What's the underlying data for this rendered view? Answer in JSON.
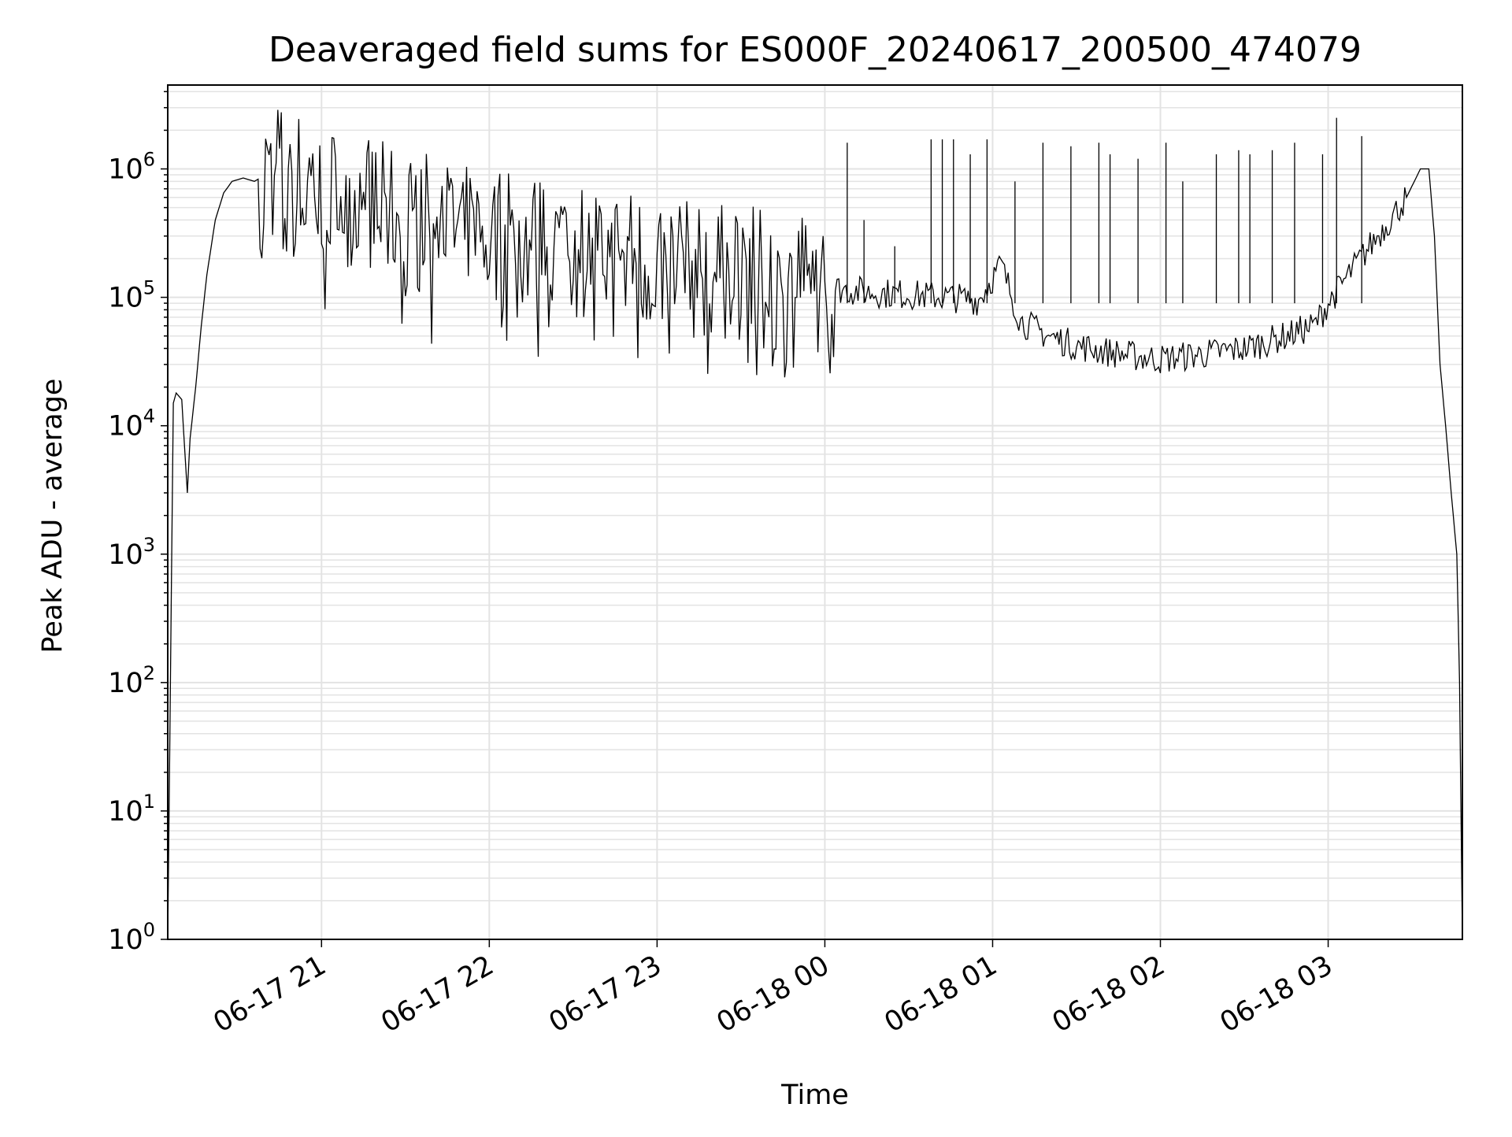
{
  "chart_data": {
    "type": "line",
    "title": "Deaveraged field sums for ES000F_20240617_200500_474079",
    "xlabel": "Time",
    "ylabel": "Peak ADU - average",
    "yscale": "log",
    "ylim": [
      1,
      4500000
    ],
    "xlim": [
      "2024-06-17 20:05:00",
      "2024-06-18 03:48:00"
    ],
    "grid": true,
    "line_color": "#000000",
    "x_tick_labels": [
      "06-17 21",
      "06-17 22",
      "06-17 23",
      "06-18 00",
      "06-18 01",
      "06-18 02",
      "06-18 03"
    ],
    "x_tick_times": [
      "2024-06-17 21:00",
      "2024-06-17 22:00",
      "2024-06-17 23:00",
      "2024-06-18 00:00",
      "2024-06-18 01:00",
      "2024-06-18 02:00",
      "2024-06-18 03:00"
    ],
    "y_ticks": [
      {
        "base": "10",
        "exp": "0",
        "value": 1
      },
      {
        "base": "10",
        "exp": "1",
        "value": 10
      },
      {
        "base": "10",
        "exp": "2",
        "value": 100
      },
      {
        "base": "10",
        "exp": "3",
        "value": 1000
      },
      {
        "base": "10",
        "exp": "4",
        "value": 10000
      },
      {
        "base": "10",
        "exp": "5",
        "value": 100000
      },
      {
        "base": "10",
        "exp": "6",
        "value": 1000000
      }
    ],
    "series": [
      {
        "x": [
          "2024-06-17 20:05",
          "2024-06-17 20:07",
          "2024-06-17 20:08",
          "2024-06-17 20:10",
          "2024-06-17 20:12",
          "2024-06-17 20:13",
          "2024-06-17 20:15",
          "2024-06-17 20:17",
          "2024-06-17 20:19",
          "2024-06-17 20:22",
          "2024-06-17 20:25",
          "2024-06-17 20:28",
          "2024-06-17 20:32",
          "2024-06-17 20:36",
          "2024-06-17 20:40",
          "2024-06-17 20:45",
          "2024-06-17 20:50",
          "2024-06-17 20:55",
          "2024-06-17 21:00",
          "2024-06-17 21:10",
          "2024-06-17 21:20",
          "2024-06-17 21:30",
          "2024-06-17 21:45",
          "2024-06-17 22:00",
          "2024-06-17 22:15",
          "2024-06-17 22:30",
          "2024-06-17 22:45",
          "2024-06-17 23:00",
          "2024-06-17 23:15",
          "2024-06-17 23:30",
          "2024-06-17 23:45",
          "2024-06-18 00:00",
          "2024-06-18 00:15",
          "2024-06-18 00:30",
          "2024-06-18 00:45",
          "2024-06-18 00:55",
          "2024-06-18 01:03",
          "2024-06-18 01:10",
          "2024-06-18 01:20",
          "2024-06-18 01:30",
          "2024-06-18 01:40",
          "2024-06-18 01:50",
          "2024-06-18 02:00",
          "2024-06-18 02:15",
          "2024-06-18 02:30",
          "2024-06-18 02:45",
          "2024-06-18 02:55",
          "2024-06-18 03:00",
          "2024-06-18 03:10",
          "2024-06-18 03:20",
          "2024-06-18 03:28",
          "2024-06-18 03:33",
          "2024-06-18 03:36",
          "2024-06-18 03:38",
          "2024-06-18 03:40",
          "2024-06-18 03:42",
          "2024-06-18 03:44",
          "2024-06-18 03:46",
          "2024-06-18 03:47",
          "2024-06-18 03:48"
        ],
        "y": [
          1,
          15000,
          18000,
          16000,
          3000,
          8000,
          20000,
          60000,
          150000,
          400000,
          650000,
          800000,
          850000,
          800000,
          900000,
          1000000,
          800000,
          900000,
          700000,
          600000,
          500000,
          400000,
          350000,
          300000,
          280000,
          250000,
          220000,
          180000,
          160000,
          150000,
          130000,
          120000,
          110000,
          105000,
          100000,
          95000,
          180000,
          65000,
          50000,
          42000,
          38000,
          35000,
          33000,
          36000,
          40000,
          50000,
          60000,
          90000,
          180000,
          350000,
          600000,
          1000000,
          1000000,
          300000,
          30000,
          10000,
          3000,
          1000,
          100,
          1
        ]
      }
    ],
    "spikes_x": [
      "2024-06-18 00:08",
      "2024-06-18 00:14",
      "2024-06-18 00:25",
      "2024-06-18 00:38",
      "2024-06-18 00:42",
      "2024-06-18 00:46",
      "2024-06-18 00:52",
      "2024-06-18 00:58",
      "2024-06-18 01:08",
      "2024-06-18 01:18",
      "2024-06-18 01:28",
      "2024-06-18 01:38",
      "2024-06-18 01:42",
      "2024-06-18 01:52",
      "2024-06-18 02:02",
      "2024-06-18 02:08",
      "2024-06-18 02:20",
      "2024-06-18 02:28",
      "2024-06-18 02:32",
      "2024-06-18 02:40",
      "2024-06-18 02:48",
      "2024-06-18 02:58",
      "2024-06-18 03:03",
      "2024-06-18 03:12"
    ],
    "spikes_y": [
      1600000,
      400000,
      250000,
      1700000,
      1700000,
      1700000,
      1300000,
      1700000,
      800000,
      1600000,
      1500000,
      1600000,
      1300000,
      1200000,
      1600000,
      800000,
      1300000,
      1400000,
      1300000,
      1400000,
      1600000,
      1300000,
      2500000,
      1800000
    ]
  }
}
